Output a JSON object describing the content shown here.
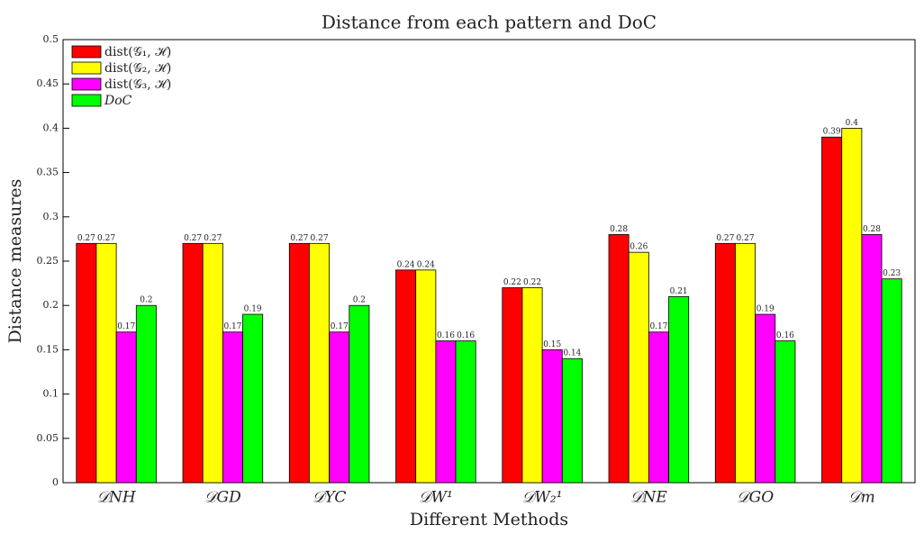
{
  "chart_data": {
    "type": "bar",
    "title": "Distance from each pattern and DoC",
    "x_label": "Different Methods",
    "y_label": "Distance measures",
    "categories": [
      "𝒟NH",
      "𝒟GD",
      "𝒟YC",
      "𝒟W¹",
      "𝒟W₂¹",
      "𝒟NE",
      "𝒟GO",
      "𝒟m"
    ],
    "series": [
      {
        "name": "dist(𝒢₁, ℋ)",
        "color": "#ff0000",
        "values": [
          0.27,
          0.27,
          0.27,
          0.24,
          0.22,
          0.28,
          0.27,
          0.39
        ]
      },
      {
        "name": "dist(𝒢₂, ℋ)",
        "color": "#ffff00",
        "values": [
          0.27,
          0.27,
          0.27,
          0.24,
          0.22,
          0.26,
          0.27,
          0.4
        ]
      },
      {
        "name": "dist(𝒢₃, ℋ)",
        "color": "#ff00ff",
        "values": [
          0.17,
          0.17,
          0.17,
          0.16,
          0.15,
          0.17,
          0.19,
          0.28
        ]
      },
      {
        "name": "DoC",
        "color": "#00ff00",
        "values": [
          0.2,
          0.19,
          0.2,
          0.16,
          0.14,
          0.21,
          0.16,
          0.23
        ]
      }
    ],
    "ylim": [
      0,
      0.5
    ],
    "yticks": [
      0,
      0.05,
      0.1,
      0.15,
      0.2,
      0.25,
      0.3,
      0.35,
      0.4,
      0.45,
      0.5
    ],
    "grid": false,
    "legend_position": "upper-left"
  }
}
